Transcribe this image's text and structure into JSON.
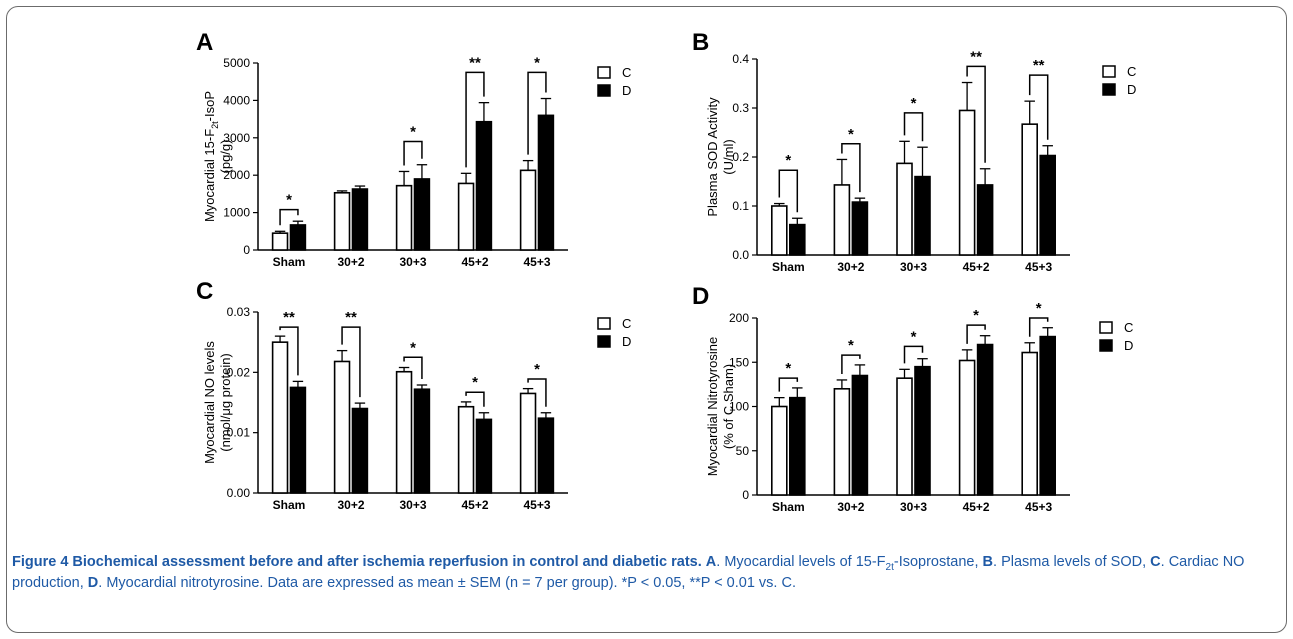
{
  "chart_data": [
    {
      "type": "bar",
      "panel": "A",
      "ylabel_line1": "Myocardial 15-F",
      "ylabel_sub": "2t",
      "ylabel_tail": "-IsoP",
      "ylabel_line2": "(pg/g)",
      "categories": [
        "Sham",
        "30+2",
        "30+3",
        "45+2",
        "45+3"
      ],
      "ylim": [
        0,
        5000
      ],
      "yticks": [
        "0",
        "1000",
        "2000",
        "3000",
        "4000",
        "5000"
      ],
      "series": [
        {
          "name": "C",
          "values": [
            450,
            1530,
            1720,
            1780,
            2130
          ],
          "errors": [
            50,
            50,
            380,
            270,
            260
          ]
        },
        {
          "name": "D",
          "values": [
            670,
            1630,
            1900,
            3430,
            3600
          ],
          "errors": [
            100,
            80,
            380,
            510,
            450
          ]
        }
      ],
      "significance": [
        "*",
        "",
        "*",
        "**",
        "*"
      ],
      "bracket_y": [
        1080,
        null,
        2900,
        4750,
        4750
      ],
      "legend": [
        "C",
        "D"
      ]
    },
    {
      "type": "bar",
      "panel": "B",
      "ylabel_line1": "Plasma SOD Activity",
      "ylabel_line2": "(U/ml)",
      "categories": [
        "Sham",
        "30+2",
        "30+3",
        "45+2",
        "45+3"
      ],
      "ylim": [
        0,
        0.4
      ],
      "yticks": [
        "0.0",
        "0.1",
        "0.2",
        "0.3",
        "0.4"
      ],
      "series": [
        {
          "name": "C",
          "values": [
            0.1,
            0.143,
            0.187,
            0.295,
            0.267
          ],
          "errors": [
            0.005,
            0.052,
            0.045,
            0.057,
            0.047
          ]
        },
        {
          "name": "D",
          "values": [
            0.062,
            0.108,
            0.16,
            0.143,
            0.203
          ],
          "errors": [
            0.013,
            0.008,
            0.06,
            0.033,
            0.02
          ]
        }
      ],
      "significance": [
        "*",
        "*",
        "*",
        "**",
        "**"
      ],
      "bracket_y": [
        0.173,
        0.227,
        0.29,
        0.385,
        0.367
      ],
      "legend": [
        "C",
        "D"
      ]
    },
    {
      "type": "bar",
      "panel": "C",
      "ylabel_line1": "Myocardial NO levels",
      "ylabel_line2": "(nmol/μg protein)",
      "categories": [
        "Sham",
        "30+2",
        "30+3",
        "45+2",
        "45+3"
      ],
      "ylim": [
        0,
        0.03
      ],
      "yticks": [
        "0.00",
        "0.01",
        "0.02",
        "0.03"
      ],
      "series": [
        {
          "name": "C",
          "values": [
            0.025,
            0.0218,
            0.0201,
            0.0143,
            0.0165
          ],
          "errors": [
            0.001,
            0.0018,
            0.0007,
            0.0008,
            0.0008
          ]
        },
        {
          "name": "D",
          "values": [
            0.0175,
            0.014,
            0.0172,
            0.0122,
            0.0124
          ],
          "errors": [
            0.001,
            0.0009,
            0.0007,
            0.0011,
            0.0009
          ]
        }
      ],
      "significance": [
        "**",
        "**",
        "*",
        "*",
        "*"
      ],
      "bracket_y": [
        0.0275,
        0.0275,
        0.0225,
        0.0167,
        0.0189
      ],
      "legend": [
        "C",
        "D"
      ]
    },
    {
      "type": "bar",
      "panel": "D",
      "ylabel_line1": "Myocardial Nitrotyrosine",
      "ylabel_line2": "(% of C Sham)",
      "categories": [
        "Sham",
        "30+2",
        "30+3",
        "45+2",
        "45+3"
      ],
      "ylim": [
        0,
        200
      ],
      "yticks": [
        "0",
        "50",
        "100",
        "150",
        "200"
      ],
      "series": [
        {
          "name": "C",
          "values": [
            100,
            120,
            132,
            152,
            161
          ],
          "errors": [
            10,
            10,
            10,
            12,
            11
          ]
        },
        {
          "name": "D",
          "values": [
            110,
            135,
            145,
            170,
            179
          ],
          "errors": [
            11,
            12,
            9,
            10,
            10
          ]
        }
      ],
      "significance": [
        "*",
        "*",
        "*",
        "*",
        "*"
      ],
      "bracket_y": [
        132,
        158,
        168,
        192,
        200
      ],
      "legend": [
        "C",
        "D"
      ]
    }
  ],
  "caption": {
    "title": "Figure 4 Biochemical assessment before and after ischemia reperfusion in control and diabetic rats.",
    "a_label": "A",
    "a_text_pre": ". Myocardial levels of 15-F",
    "a_sub": "2t",
    "a_text_post": "-Isoprostane, ",
    "b_label": "B",
    "b_text": ". Plasma levels of SOD, ",
    "c_label": "C",
    "c_text": ". Cardiac NO production, ",
    "d_label": "D",
    "d_text": ". Myocardial nitrotyrosine. Data are expressed as mean ± SEM (n = 7 per group). *P < 0.05, **P < 0.01 vs. C."
  }
}
